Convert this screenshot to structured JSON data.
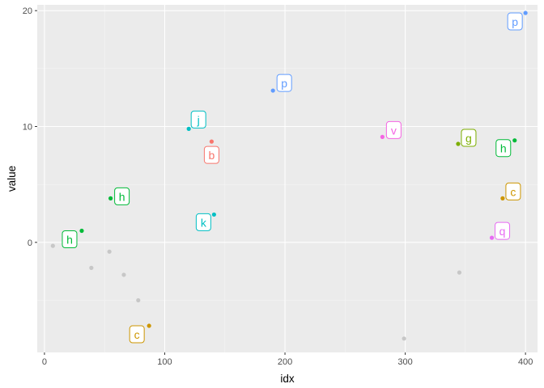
{
  "chart_data": {
    "type": "scatter",
    "title": "",
    "xlabel": "idx",
    "ylabel": "value",
    "xlim": [
      -6,
      410
    ],
    "ylim": [
      -9.5,
      20.5
    ],
    "x_ticks": [
      0,
      100,
      200,
      300,
      400
    ],
    "y_ticks": [
      0,
      10,
      20
    ],
    "x_tick_labels": [
      "0",
      "100",
      "200",
      "300",
      "400"
    ],
    "y_tick_labels": [
      "0",
      "10",
      "20"
    ],
    "grid": true,
    "background_points": [
      {
        "x": 7,
        "y": -0.3
      },
      {
        "x": 39,
        "y": -2.2
      },
      {
        "x": 54,
        "y": -0.8
      },
      {
        "x": 66,
        "y": -2.8
      },
      {
        "x": 78,
        "y": -5.0
      },
      {
        "x": 299,
        "y": -8.3
      },
      {
        "x": 345,
        "y": -2.6
      }
    ],
    "labeled_points": [
      {
        "x": 31,
        "y": 1.0,
        "label": "h",
        "color": "#00ba38",
        "label_dx": -15,
        "label_dy": 11
      },
      {
        "x": 55,
        "y": 3.8,
        "label": "h",
        "color": "#00ba38",
        "label_dx": 14,
        "label_dy": -2
      },
      {
        "x": 87,
        "y": -7.2,
        "label": "c",
        "color": "#cd9600",
        "label_dx": -15,
        "label_dy": 11
      },
      {
        "x": 120,
        "y": 9.8,
        "label": "j",
        "color": "#00bfc4",
        "label_dx": 12,
        "label_dy": -11
      },
      {
        "x": 139,
        "y": 8.7,
        "label": "b",
        "color": "#f8766d",
        "label_dx": 0,
        "label_dy": 17
      },
      {
        "x": 141,
        "y": 2.4,
        "label": "k",
        "color": "#00bfc4",
        "label_dx": -13,
        "label_dy": 10
      },
      {
        "x": 190,
        "y": 13.1,
        "label": "p",
        "color": "#619cff",
        "label_dx": 14,
        "label_dy": -9
      },
      {
        "x": 281,
        "y": 9.1,
        "label": "v",
        "color": "#f564e3",
        "label_dx": 14,
        "label_dy": -8
      },
      {
        "x": 344,
        "y": 8.5,
        "label": "g",
        "color": "#7cae00",
        "label_dx": 13,
        "label_dy": -7
      },
      {
        "x": 381,
        "y": 3.8,
        "label": "c",
        "color": "#cd9600",
        "label_dx": 13,
        "label_dy": -8
      },
      {
        "x": 391,
        "y": 8.8,
        "label": "h",
        "color": "#00ba38",
        "label_dx": -14,
        "label_dy": 10
      },
      {
        "x": 372,
        "y": 0.4,
        "label": "q",
        "color": "#e76bf3",
        "label_dx": 13,
        "label_dy": -8
      },
      {
        "x": 400,
        "y": 19.8,
        "label": "p",
        "color": "#619cff",
        "label_dx": -13,
        "label_dy": 11
      }
    ],
    "colors": {
      "panel_bg": "#ebebeb",
      "grid_major": "#ffffff",
      "grid_minor": "#f5f5f5",
      "background_point": "#c7c7c7"
    }
  }
}
